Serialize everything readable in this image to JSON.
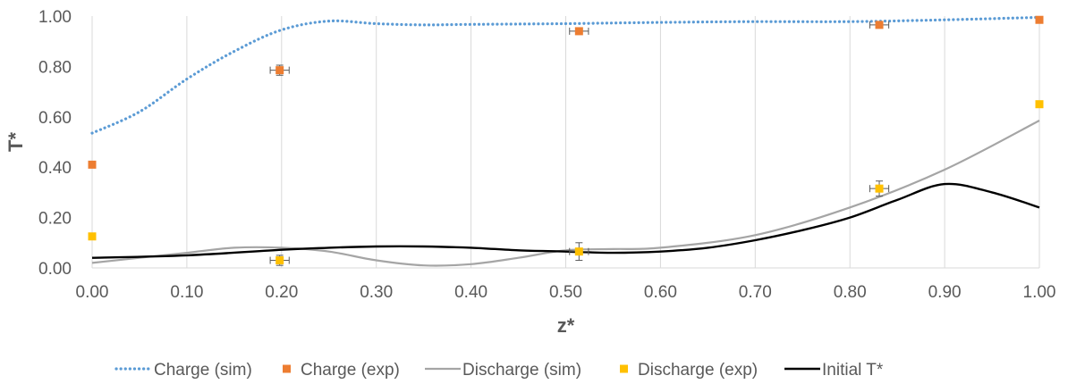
{
  "chart_data": {
    "type": "line",
    "xlabel": "z*",
    "ylabel": "T*",
    "xlim": [
      0,
      1
    ],
    "ylim": [
      0,
      1
    ],
    "grid": "vertical gridlines",
    "legend_position": "bottom",
    "x_tick_labels": [
      "0.00",
      "0.10",
      "0.20",
      "0.30",
      "0.40",
      "0.50",
      "0.60",
      "0.70",
      "0.80",
      "0.90",
      "1.00"
    ],
    "y_tick_labels": [
      "0.00",
      "0.20",
      "0.40",
      "0.60",
      "0.80",
      "1.00"
    ],
    "series": [
      {
        "name": "Charge (sim)",
        "kind": "line",
        "style": "dotted",
        "color": "#5b9bd5",
        "x": [
          0,
          0.05,
          0.1,
          0.15,
          0.2,
          0.25,
          0.3,
          0.35,
          0.4,
          0.5,
          0.6,
          0.7,
          0.8,
          0.9,
          1.0
        ],
        "y": [
          0.535,
          0.62,
          0.75,
          0.86,
          0.945,
          0.98,
          0.97,
          0.965,
          0.967,
          0.97,
          0.975,
          0.978,
          0.978,
          0.985,
          0.995
        ]
      },
      {
        "name": "Charge (exp)",
        "kind": "scatter",
        "color": "#ed7d31",
        "x": [
          0.0,
          0.198,
          0.514,
          0.831,
          1.0
        ],
        "y": [
          0.41,
          0.785,
          0.94,
          0.965,
          0.985
        ],
        "yerr": [
          0,
          0.02,
          0.01,
          0.01,
          0
        ],
        "xerr": [
          0,
          0.01,
          0.01,
          0.01,
          0
        ]
      },
      {
        "name": "Discharge (sim)",
        "kind": "line",
        "style": "solid",
        "color": "#a5a5a5",
        "x": [
          0,
          0.05,
          0.1,
          0.15,
          0.2,
          0.25,
          0.3,
          0.35,
          0.4,
          0.45,
          0.5,
          0.55,
          0.6,
          0.7,
          0.8,
          0.9,
          1.0
        ],
        "y": [
          0.02,
          0.04,
          0.06,
          0.08,
          0.08,
          0.065,
          0.03,
          0.01,
          0.015,
          0.04,
          0.07,
          0.075,
          0.08,
          0.13,
          0.24,
          0.39,
          0.585
        ]
      },
      {
        "name": "Discharge (exp)",
        "kind": "scatter",
        "color": "#ffc000",
        "x": [
          0.0,
          0.198,
          0.514,
          0.831,
          1.0
        ],
        "y": [
          0.125,
          0.03,
          0.065,
          0.315,
          0.65
        ],
        "yerr": [
          0,
          0.02,
          0.035,
          0.03,
          0
        ],
        "xerr": [
          0,
          0.01,
          0.01,
          0.01,
          0
        ]
      },
      {
        "name": "Initial T*",
        "kind": "line",
        "style": "solid",
        "color": "#000000",
        "x": [
          0,
          0.1,
          0.2,
          0.25,
          0.3,
          0.35,
          0.4,
          0.45,
          0.5,
          0.55,
          0.6,
          0.65,
          0.7,
          0.75,
          0.8,
          0.85,
          0.9,
          0.95,
          1.0
        ],
        "y": [
          0.04,
          0.05,
          0.072,
          0.08,
          0.085,
          0.085,
          0.08,
          0.07,
          0.065,
          0.06,
          0.065,
          0.08,
          0.11,
          0.15,
          0.2,
          0.27,
          0.333,
          0.3,
          0.24
        ]
      }
    ]
  }
}
